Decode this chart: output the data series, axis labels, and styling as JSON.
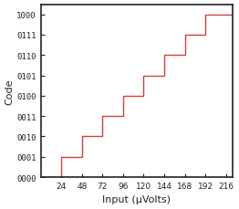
{
  "title": "",
  "xlabel": "Input (μVolts)",
  "ylabel": "Code",
  "ytick_labels": [
    "0000",
    "0001",
    "0010",
    "0011",
    "0100",
    "0101",
    "0110",
    "0111",
    "1000"
  ],
  "ytick_values": [
    0,
    1,
    2,
    3,
    4,
    5,
    6,
    7,
    8
  ],
  "xtick_values": [
    24,
    48,
    72,
    96,
    120,
    144,
    168,
    192,
    216
  ],
  "xlim": [
    0,
    224
  ],
  "ylim": [
    0,
    8.5
  ],
  "step_x": [
    0,
    24,
    24,
    48,
    48,
    72,
    72,
    96,
    96,
    120,
    120,
    144,
    144,
    168,
    168,
    192,
    192,
    224
  ],
  "step_y": [
    0,
    0,
    1,
    1,
    2,
    2,
    3,
    3,
    4,
    4,
    5,
    5,
    6,
    6,
    7,
    7,
    8,
    8
  ],
  "line_color": "#d04040",
  "bg_color": "#ffffff",
  "axes_color": "#222222",
  "tick_color": "#555555",
  "label_fontsize": 8,
  "tick_fontsize": 6.5
}
